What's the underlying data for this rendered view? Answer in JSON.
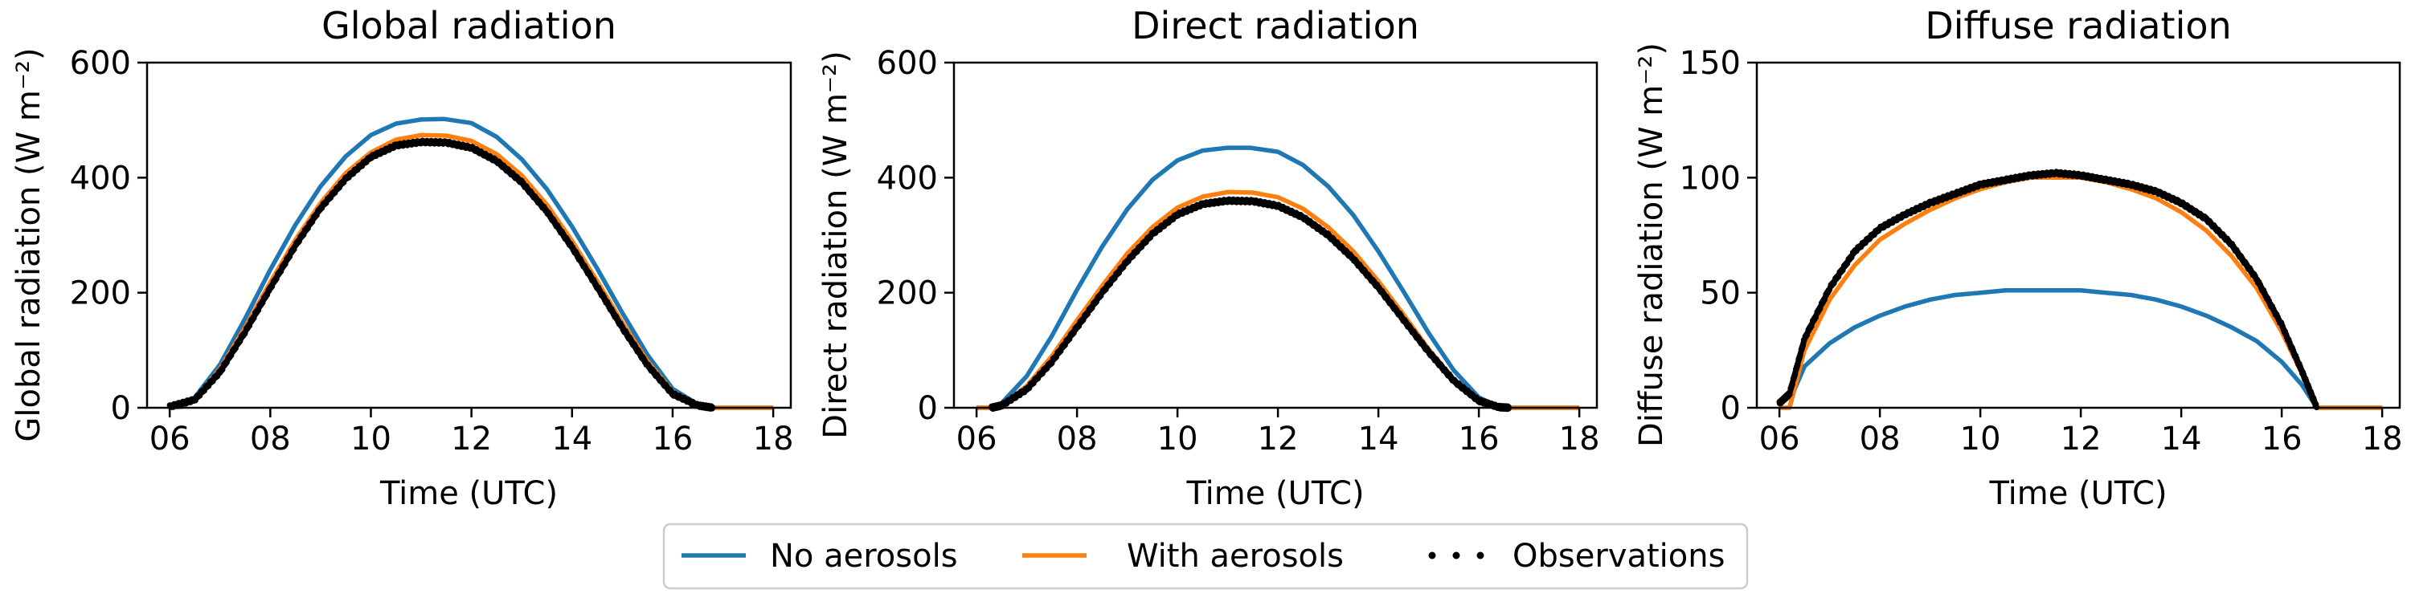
{
  "chart_data": [
    {
      "type": "line",
      "title": "Global radiation",
      "xlabel": "Time (UTC)",
      "ylabel": "Global radiation (W m⁻²)",
      "xlim": [
        5.55,
        18.35
      ],
      "ylim": [
        0,
        600
      ],
      "xticks": [
        6,
        8,
        10,
        12,
        14,
        16,
        18
      ],
      "xtick_labels": [
        "06",
        "08",
        "10",
        "12",
        "14",
        "16",
        "18"
      ],
      "yticks": [
        0,
        200,
        400,
        600
      ],
      "ytick_labels": [
        "0",
        "200",
        "400",
        "600"
      ],
      "grid": false,
      "series": [
        {
          "name": "No aerosols",
          "style": "line",
          "x": [
            6.0,
            6.25,
            6.5,
            7.0,
            7.5,
            8.0,
            8.5,
            9.0,
            9.5,
            10.0,
            10.5,
            11.0,
            11.45,
            12.0,
            12.5,
            13.0,
            13.5,
            14.0,
            14.5,
            15.0,
            15.5,
            16.0,
            16.5,
            16.8,
            17.0,
            18.0
          ],
          "y": [
            0,
            2,
            18,
            75,
            155,
            240,
            318,
            385,
            437,
            474,
            494,
            501,
            502,
            495,
            471,
            432,
            380,
            315,
            242,
            165,
            92,
            33,
            6,
            0,
            0,
            0
          ]
        },
        {
          "name": "With aerosols",
          "style": "line",
          "x": [
            6.0,
            6.25,
            6.5,
            7.0,
            7.5,
            8.0,
            8.5,
            9.0,
            9.5,
            10.0,
            10.5,
            11.0,
            11.5,
            12.0,
            12.5,
            13.0,
            13.5,
            14.0,
            14.5,
            15.0,
            15.5,
            16.0,
            16.5,
            16.8,
            17.0,
            18.0
          ],
          "y": [
            0,
            2,
            15,
            68,
            140,
            218,
            292,
            356,
            408,
            444,
            466,
            474,
            473,
            464,
            441,
            404,
            353,
            290,
            220,
            148,
            81,
            28,
            5,
            0,
            0,
            0
          ]
        },
        {
          "name": "Observations",
          "style": "dots",
          "x": [
            6.0,
            6.5,
            7.0,
            7.5,
            8.0,
            8.5,
            9.0,
            9.5,
            10.0,
            10.5,
            11.0,
            11.5,
            12.0,
            12.5,
            13.0,
            13.5,
            14.0,
            14.5,
            15.0,
            15.5,
            16.0,
            16.5,
            16.8
          ],
          "y": [
            2,
            14,
            62,
            132,
            208,
            282,
            347,
            398,
            436,
            456,
            462,
            461,
            452,
            429,
            392,
            341,
            279,
            210,
            139,
            74,
            24,
            4,
            0
          ]
        }
      ]
    },
    {
      "type": "line",
      "title": "Direct radiation",
      "xlabel": "Time (UTC)",
      "ylabel": "Direct radiation (W m⁻²)",
      "xlim": [
        5.55,
        18.35
      ],
      "ylim": [
        0,
        600
      ],
      "xticks": [
        6,
        8,
        10,
        12,
        14,
        16,
        18
      ],
      "xtick_labels": [
        "06",
        "08",
        "10",
        "12",
        "14",
        "16",
        "18"
      ],
      "yticks": [
        0,
        200,
        400,
        600
      ],
      "ytick_labels": [
        "0",
        "200",
        "400",
        "600"
      ],
      "grid": false,
      "series": [
        {
          "name": "No aerosols",
          "style": "line",
          "x": [
            6.0,
            6.3,
            6.5,
            7.0,
            7.5,
            8.0,
            8.5,
            9.0,
            9.5,
            10.0,
            10.5,
            11.0,
            11.45,
            12.0,
            12.5,
            13.0,
            13.5,
            14.0,
            14.5,
            15.0,
            15.5,
            16.0,
            16.4,
            16.6,
            17.0,
            18.0
          ],
          "y": [
            0,
            0,
            8,
            55,
            125,
            205,
            280,
            345,
            396,
            430,
            447,
            452,
            452,
            445,
            422,
            385,
            335,
            272,
            202,
            130,
            65,
            18,
            2,
            0,
            0,
            0
          ]
        },
        {
          "name": "With aerosols",
          "style": "line",
          "x": [
            6.0,
            6.3,
            6.5,
            7.0,
            7.5,
            8.0,
            8.5,
            9.0,
            9.5,
            10.0,
            10.5,
            11.0,
            11.5,
            12.0,
            12.5,
            13.0,
            13.5,
            14.0,
            14.5,
            15.0,
            15.5,
            16.0,
            16.4,
            16.6,
            17.0,
            18.0
          ],
          "y": [
            0,
            0,
            5,
            38,
            90,
            152,
            212,
            268,
            314,
            348,
            367,
            375,
            374,
            366,
            346,
            314,
            272,
            220,
            162,
            102,
            50,
            13,
            1,
            0,
            0,
            0
          ]
        },
        {
          "name": "Observations",
          "style": "dots",
          "x": [
            6.3,
            6.5,
            7.0,
            7.5,
            8.0,
            8.5,
            9.0,
            9.5,
            10.0,
            10.5,
            11.0,
            11.5,
            12.0,
            12.5,
            13.0,
            13.5,
            14.0,
            14.5,
            15.0,
            15.5,
            16.0,
            16.4,
            16.6
          ],
          "y": [
            0,
            4,
            32,
            80,
            140,
            200,
            255,
            302,
            336,
            354,
            360,
            359,
            351,
            331,
            300,
            259,
            209,
            153,
            97,
            47,
            12,
            1,
            0
          ]
        }
      ]
    },
    {
      "type": "line",
      "title": "Diffuse radiation",
      "xlabel": "Time (UTC)",
      "ylabel": "Diffuse radiation (W m⁻²)",
      "xlim": [
        5.55,
        18.35
      ],
      "ylim": [
        0,
        150
      ],
      "xticks": [
        6,
        8,
        10,
        12,
        14,
        16,
        18
      ],
      "xtick_labels": [
        "06",
        "08",
        "10",
        "12",
        "14",
        "16",
        "18"
      ],
      "yticks": [
        0,
        50,
        100,
        150
      ],
      "ytick_labels": [
        "0",
        "50",
        "100",
        "150"
      ],
      "grid": false,
      "series": [
        {
          "name": "No aerosols",
          "style": "line",
          "x": [
            6.2,
            6.3,
            6.5,
            7.0,
            7.5,
            8.0,
            8.5,
            9.0,
            9.5,
            10.0,
            10.5,
            11.0,
            11.45,
            12.0,
            12.5,
            13.0,
            13.5,
            14.0,
            14.5,
            15.0,
            15.5,
            16.0,
            16.4,
            16.7,
            17.0,
            18.0
          ],
          "y": [
            0,
            8,
            18,
            28,
            35,
            40,
            44,
            47,
            49,
            50,
            51,
            51,
            51,
            51,
            50,
            49,
            47,
            44,
            40,
            35,
            29,
            20,
            10,
            0,
            0,
            0
          ]
        },
        {
          "name": "With aerosols",
          "style": "line",
          "x": [
            6.0,
            6.2,
            6.5,
            7.0,
            7.5,
            8.0,
            8.5,
            9.0,
            9.5,
            10.0,
            10.5,
            11.0,
            11.5,
            12.0,
            12.5,
            13.0,
            13.5,
            14.0,
            14.5,
            15.0,
            15.5,
            16.0,
            16.4,
            16.7,
            17.0,
            18.0
          ],
          "y": [
            0,
            0,
            25,
            47,
            62,
            73,
            80,
            86,
            91,
            95,
            98,
            100,
            100,
            100,
            98,
            95,
            91,
            85,
            77,
            66,
            52,
            33,
            15,
            0,
            0,
            0
          ]
        },
        {
          "name": "Observations",
          "style": "dots",
          "x": [
            6.0,
            6.2,
            6.5,
            7.0,
            7.5,
            8.0,
            8.5,
            9.0,
            9.5,
            10.0,
            10.5,
            11.0,
            11.5,
            12.0,
            12.5,
            13.0,
            13.5,
            14.0,
            14.5,
            15.0,
            15.5,
            16.0,
            16.4,
            16.7
          ],
          "y": [
            2,
            6,
            30,
            52,
            68,
            78,
            84,
            89,
            93,
            97,
            99,
            101,
            102,
            101,
            99,
            97,
            94,
            89,
            82,
            71,
            56,
            36,
            16,
            0
          ]
        }
      ]
    }
  ],
  "legend": {
    "placement": "bottom-center",
    "items": [
      {
        "label": "No aerosols",
        "marker": "line",
        "color": "#1f77b4"
      },
      {
        "label": "With aerosols",
        "marker": "line",
        "color": "#ff7f0e"
      },
      {
        "label": "Observations",
        "marker": "dots",
        "color": "#000000"
      }
    ]
  },
  "colors": {
    "No aerosols": "#1f77b4",
    "With aerosols": "#ff7f0e",
    "Observations": "#000000"
  }
}
